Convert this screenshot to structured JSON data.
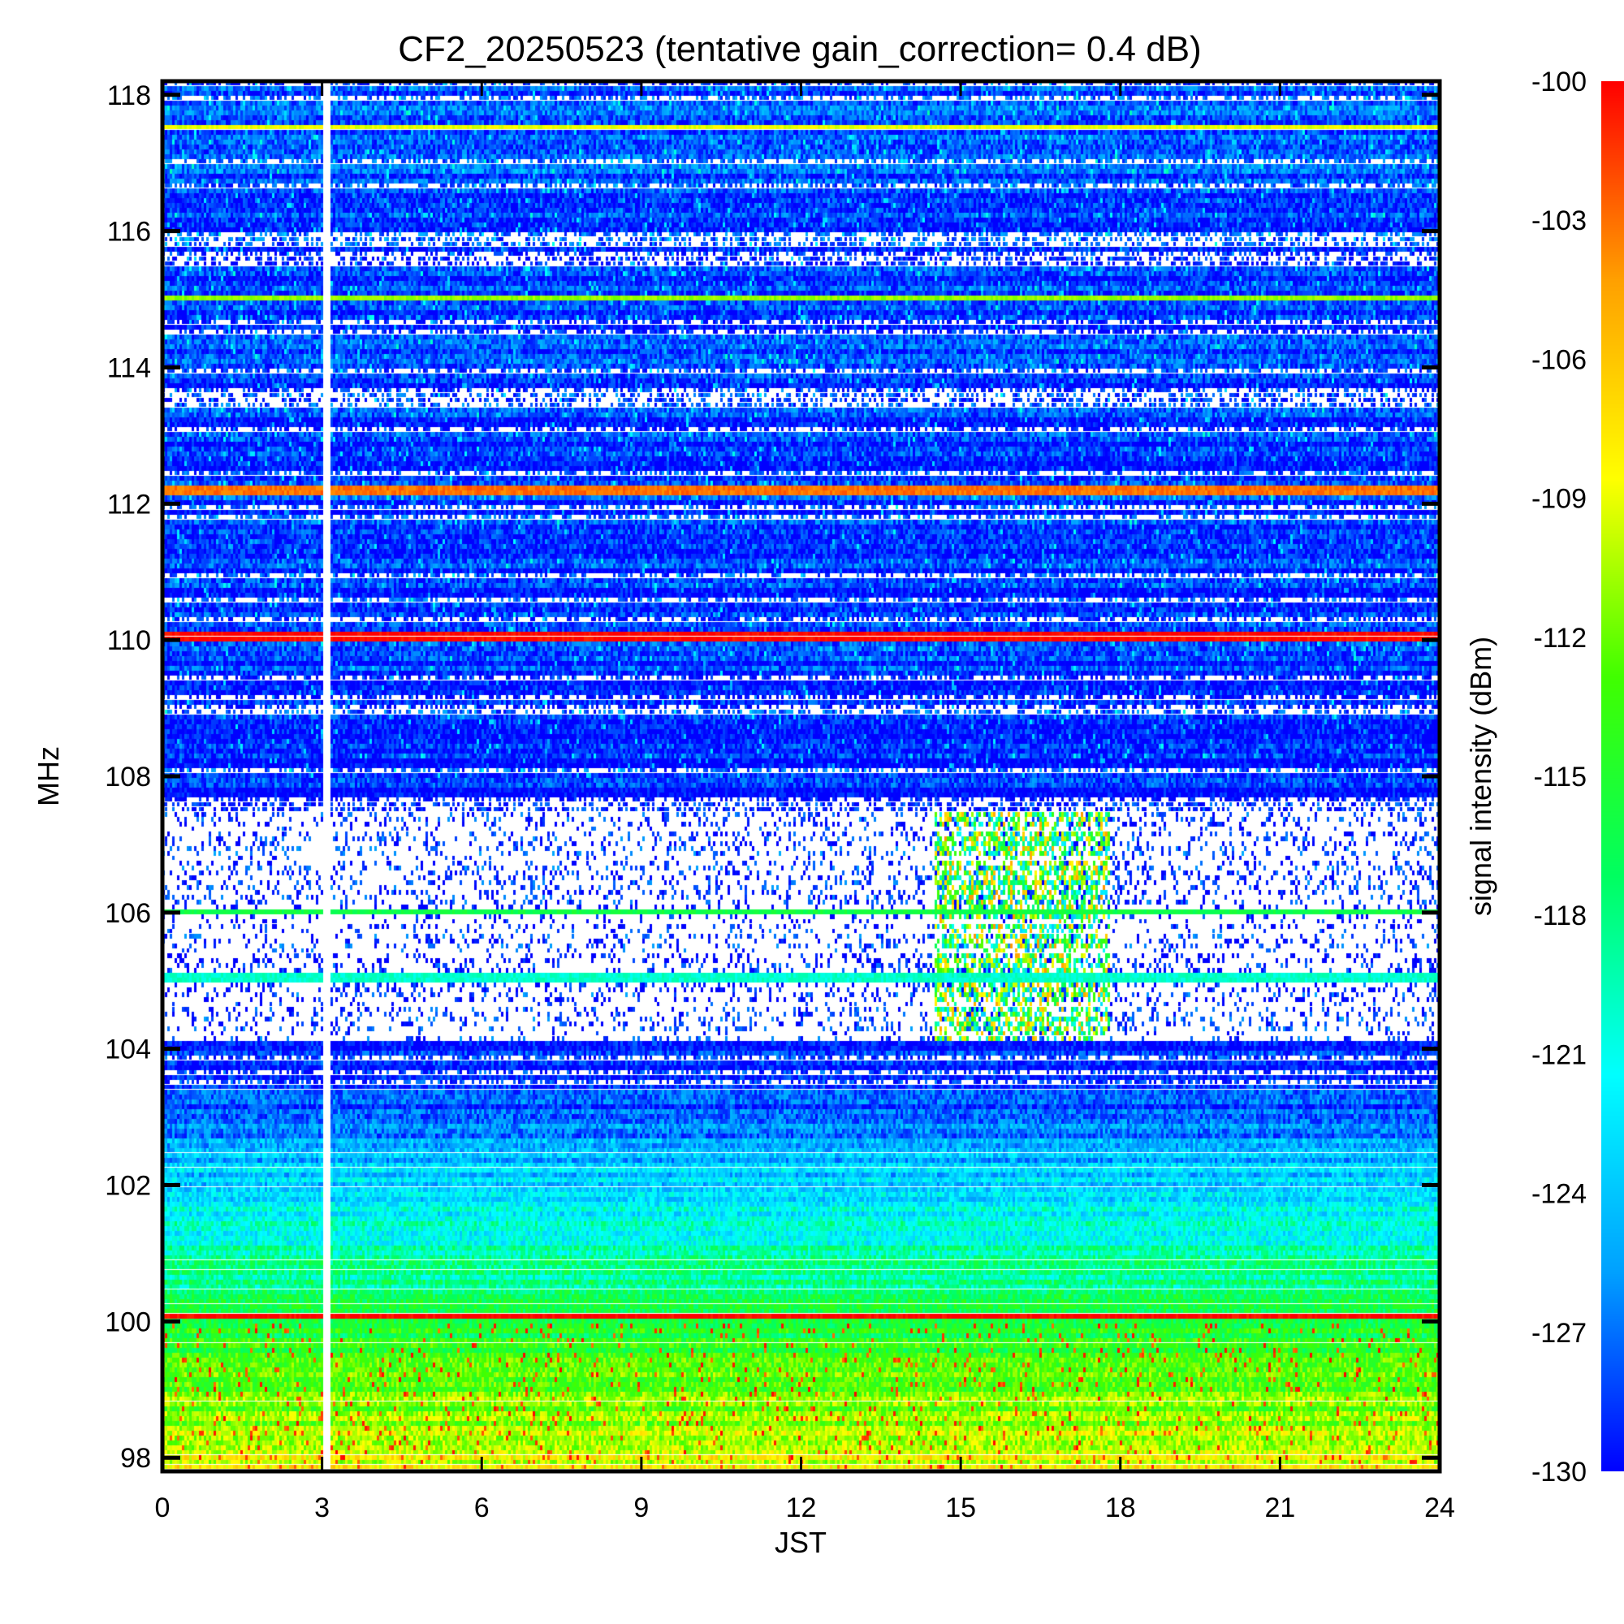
{
  "chart_data": {
    "type": "heatmap",
    "title": "CF2_20250523 (tentative gain_correction=  0.4 dB)",
    "xlabel": "JST",
    "ylabel": "MHz",
    "colorbar_label": "signal intensity (dBm)",
    "xlim": [
      0,
      24
    ],
    "ylim": [
      97.8,
      118.2
    ],
    "x_ticks": [
      0,
      3,
      6,
      9,
      12,
      15,
      18,
      21,
      24
    ],
    "y_ticks": [
      98,
      100,
      102,
      104,
      106,
      108,
      110,
      112,
      114,
      116,
      118
    ],
    "colorbar_range": [
      -130,
      -100
    ],
    "colorbar_ticks": [
      -100,
      -103,
      -106,
      -109,
      -112,
      -115,
      -118,
      -121,
      -124,
      -127,
      -130
    ],
    "colormap": [
      "#0000ff",
      "#00a0ff",
      "#00ffff",
      "#00ff60",
      "#40ff00",
      "#ffff00",
      "#ffa000",
      "#ff0000"
    ],
    "data_gap": {
      "jst_start": 3.0,
      "jst_end": 3.1
    },
    "strong_carriers": [
      {
        "freq": 117.5,
        "level": -109
      },
      {
        "freq": 115.0,
        "level": -111
      },
      {
        "freq": 112.2,
        "level": -103
      },
      {
        "freq": 110.05,
        "level": -100
      },
      {
        "freq": 106.0,
        "level": -116
      },
      {
        "freq": 105.05,
        "level": -120
      },
      {
        "freq": 100.05,
        "level": -100
      }
    ],
    "background_profile": [
      {
        "freq": 97.8,
        "level": -109
      },
      {
        "freq": 98.5,
        "level": -111
      },
      {
        "freq": 99.5,
        "level": -114
      },
      {
        "freq": 100.5,
        "level": -118
      },
      {
        "freq": 101.5,
        "level": -121
      },
      {
        "freq": 102.5,
        "level": -125
      },
      {
        "freq": 103.5,
        "level": -129
      },
      {
        "freq": 108.0,
        "level": -129
      },
      {
        "freq": 118.2,
        "level": -128
      }
    ],
    "sparse_region_mhz": [
      104.1,
      107.5
    ],
    "activity_period_jst": [
      14.5,
      17.8
    ]
  }
}
